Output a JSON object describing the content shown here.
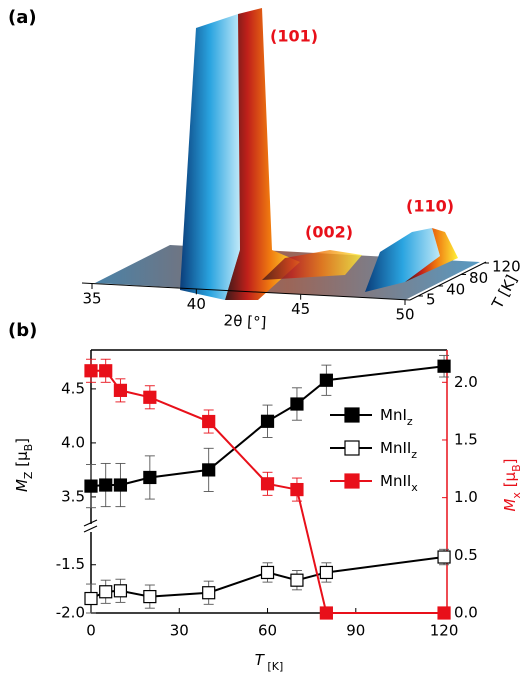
{
  "chart_data": [
    {
      "type": "surface3d",
      "panel_label": "(a)",
      "peak_labels": [
        "(101)",
        "(002)",
        "(110)"
      ],
      "xlabel": "2θ [°]",
      "xlim": [
        35,
        50
      ],
      "xticks": [
        35,
        40,
        45,
        50
      ],
      "tlabel": "T [K]",
      "tlim": [
        5,
        120
      ],
      "tticks": [
        5,
        40,
        80,
        120
      ]
    },
    {
      "type": "line",
      "panel_label": "(b)",
      "xlabel_parts": [
        "T",
        " [K]"
      ],
      "ylabel_parts": [
        "M",
        "Z",
        " [μ",
        "B",
        "]"
      ],
      "y2label_parts": [
        "M",
        "x",
        " [μ",
        "B",
        "]"
      ],
      "xlim": [
        0,
        121
      ],
      "xticks": [
        0,
        30,
        60,
        90,
        120
      ],
      "ylim_segments": [
        {
          "ylim": [
            3.24,
            4.86
          ],
          "yticks": [
            3.5,
            {
              "value": 4,
              "label": "4.0"
            },
            4.5
          ]
        },
        {
          "ylim": [
            -2.0,
            -1.14
          ],
          "yticks": [
            {
              "value": -2,
              "label": "-2.0"
            },
            -1.5
          ]
        }
      ],
      "y2lim": [
        0,
        2.28
      ],
      "y2ticks": [
        {
          "value": 0,
          "label": "0.0"
        },
        0.5,
        {
          "value": 1,
          "label": "1.0"
        },
        1.5,
        {
          "value": 2,
          "label": "2.0"
        }
      ],
      "series": [
        {
          "name": "MnI",
          "name_sub": "z",
          "color": "#000000",
          "marker": "filled",
          "x": [
            0,
            5,
            10,
            20,
            40,
            60,
            70,
            80,
            120
          ],
          "values": [
            3.6,
            3.61,
            3.61,
            3.68,
            3.75,
            4.2,
            4.36,
            4.58,
            4.71
          ],
          "errors": [
            0.2,
            0.2,
            0.2,
            0.2,
            0.2,
            0.15,
            0.15,
            0.14,
            0.1
          ]
        },
        {
          "name": "MnII",
          "name_sub": "z",
          "color": "#000000",
          "marker": "open",
          "x": [
            0,
            5,
            10,
            20,
            40,
            60,
            70,
            80,
            120
          ],
          "values": [
            -1.85,
            -1.78,
            -1.77,
            -1.83,
            -1.79,
            -1.58,
            -1.66,
            -1.58,
            -1.42
          ],
          "errors": [
            0.15,
            0.12,
            0.12,
            0.12,
            0.12,
            0.1,
            0.1,
            0.1,
            0.08
          ]
        },
        {
          "name": "MnII",
          "name_sub": "x",
          "color": "#e8101a",
          "marker": "filled",
          "axis": "y2",
          "x": [
            0,
            5,
            10,
            20,
            40,
            60,
            70,
            80,
            120
          ],
          "values": [
            2.1,
            2.1,
            1.93,
            1.87,
            1.66,
            1.12,
            1.07,
            0.0,
            0.0
          ],
          "errors": [
            0.1,
            0.1,
            0.1,
            0.1,
            0.1,
            0.1,
            0.1,
            0.05,
            0.03
          ]
        }
      ]
    }
  ]
}
